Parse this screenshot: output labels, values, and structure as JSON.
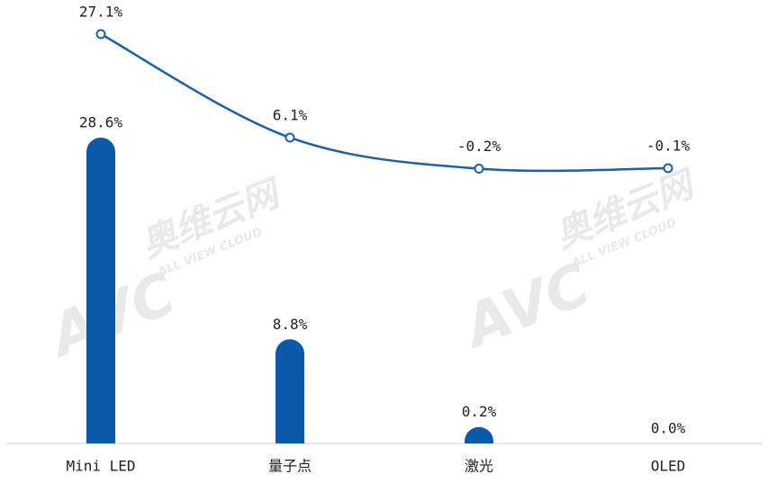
{
  "chart_data": {
    "type": "bar-line",
    "categories": [
      "Mini LED",
      "量子点",
      "激光",
      "OLED"
    ],
    "series": [
      {
        "type": "bar",
        "color": "#0b5aaa",
        "values": [
          28.6,
          8.8,
          0.2,
          0.0
        ],
        "value_labels": [
          "28.6%",
          "8.8%",
          "0.2%",
          "0.0%"
        ]
      },
      {
        "type": "line",
        "color": "#1b60a8",
        "values": [
          27.1,
          6.1,
          -0.2,
          -0.1
        ],
        "value_labels": [
          "27.1%",
          "6.1%",
          "-0.2%",
          "-0.1%"
        ]
      }
    ],
    "watermark": [
      "AVC",
      "奥维云网",
      "ALL VIEW CLOUD"
    ]
  }
}
